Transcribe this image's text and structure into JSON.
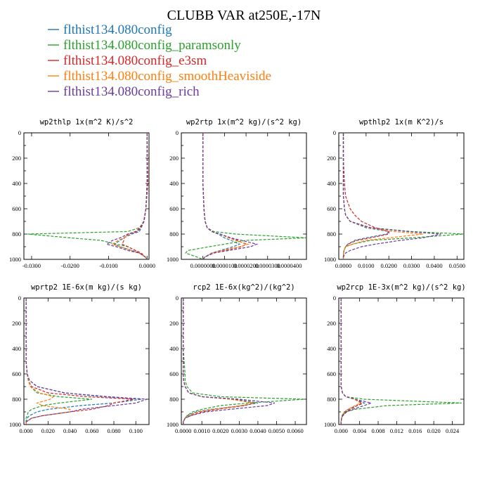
{
  "figure_title": "CLUBB VAR at250E,-17N",
  "legend": [
    {
      "label": "flthist134.080config",
      "color": "#1f77b4"
    },
    {
      "label": "flthist134.080config_paramsonly",
      "color": "#2ca02c"
    },
    {
      "label": "flthist134.080config_e3sm",
      "color": "#d62728"
    },
    {
      "label": "flthist134.080config_smoothHeaviside",
      "color": "#ff7f0e"
    },
    {
      "label": "flthist134.080config_rich",
      "color": "#6a3d9a"
    }
  ],
  "chart_data": [
    {
      "type": "line",
      "title": "wp2thlp   1x(m^2 K)/s^2",
      "xlim": [
        -0.032,
        0.0005
      ],
      "ylim": [
        1000,
        0
      ],
      "xticks": [
        "-0.0300",
        "-0.0200",
        "-0.0100",
        "0.0000"
      ],
      "xtick_values": [
        -0.03,
        -0.02,
        -0.01,
        0.0
      ],
      "yticks": [
        "0",
        "200",
        "400",
        "600",
        "800",
        "1000"
      ],
      "y": [
        0,
        200,
        400,
        600,
        700,
        750,
        780,
        800,
        830,
        850,
        880,
        900,
        930,
        950,
        980,
        1000
      ],
      "series": [
        {
          "values": [
            0,
            0,
            0,
            -0.0003,
            -0.0008,
            -0.0015,
            -0.002,
            -0.004,
            -0.006,
            -0.007,
            -0.0085,
            -0.007,
            -0.004,
            -0.002,
            -0.0005,
            0
          ]
        },
        {
          "values": [
            0,
            0,
            0,
            -0.0003,
            -0.0008,
            -0.002,
            -0.005,
            -0.031,
            -0.02,
            -0.012,
            -0.008,
            -0.005,
            -0.003,
            -0.002,
            -0.0005,
            0
          ]
        },
        {
          "values": [
            0,
            0.0001,
            0.0002,
            -0.0003,
            -0.0009,
            -0.0018,
            -0.003,
            -0.005,
            -0.006,
            -0.006,
            -0.0065,
            -0.005,
            -0.003,
            -0.0015,
            -0.0005,
            0
          ]
        },
        {
          "values": [
            0,
            0,
            0,
            -0.0003,
            -0.0008,
            -0.0016,
            -0.0025,
            -0.0045,
            -0.006,
            -0.0075,
            -0.009,
            -0.007,
            -0.004,
            -0.002,
            -0.0005,
            0
          ]
        },
        {
          "values": [
            0,
            0,
            0,
            -0.0003,
            -0.0008,
            -0.0016,
            -0.0025,
            -0.005,
            -0.007,
            -0.009,
            -0.0105,
            -0.008,
            -0.005,
            -0.002,
            -0.0005,
            0
          ]
        }
      ]
    },
    {
      "type": "line",
      "title": "wp2rtp   1x(m^2 kg)/(s^2 kg)",
      "xlim": [
        -1e-05,
        4.8e-05
      ],
      "ylim": [
        1000,
        0
      ],
      "xticks": [
        "0.0000000",
        "0.0000100",
        "0.0000200",
        "0.0000300",
        "0.0000400"
      ],
      "xtick_values": [
        0.0,
        1e-05,
        2e-05,
        3e-05,
        4e-05
      ],
      "yticks": [
        "0",
        "200",
        "400",
        "600",
        "800",
        "1000"
      ],
      "y": [
        0,
        200,
        400,
        600,
        700,
        750,
        780,
        800,
        830,
        850,
        880,
        900,
        930,
        950,
        980,
        1000
      ],
      "series": [
        {
          "values": [
            0,
            0,
            0,
            5e-07,
            1e-06,
            2e-06,
            4e-06,
            7e-06,
            1e-05,
            1.3e-05,
            1.7e-05,
            1.4e-05,
            8e-06,
            4e-06,
            1e-06,
            0
          ]
        },
        {
          "values": [
            0,
            0,
            0,
            5e-07,
            1e-06,
            2e-06,
            5e-06,
            1.5e-05,
            4.8e-05,
            2e-05,
            1e-05,
            3e-06,
            -7e-06,
            -8e-06,
            -3e-06,
            0
          ]
        },
        {
          "values": [
            0,
            0,
            0,
            5e-07,
            1e-06,
            2e-06,
            4e-06,
            8e-06,
            1.2e-05,
            1.6e-05,
            2e-05,
            1.8e-05,
            1e-05,
            5e-06,
            1e-06,
            0
          ]
        },
        {
          "values": [
            0,
            0,
            0,
            5e-07,
            1e-06,
            2e-06,
            4e-06,
            8e-06,
            1.2e-05,
            1.5e-05,
            2.1e-05,
            1.7e-05,
            9e-06,
            4e-06,
            1e-06,
            0
          ]
        },
        {
          "values": [
            0,
            0,
            0,
            5e-07,
            1e-06,
            2e-06,
            4e-06,
            8e-06,
            1.3e-05,
            1.8e-05,
            2.5e-05,
            2.2e-05,
            1.2e-05,
            5e-06,
            1e-06,
            0
          ]
        }
      ]
    },
    {
      "type": "line",
      "title": "wpthlp2   1x(m K^2)/s",
      "xlim": [
        -0.002,
        0.053
      ],
      "ylim": [
        1000,
        0
      ],
      "xticks": [
        "0.0000",
        "0.0100",
        "0.0200",
        "0.0300",
        "0.0400",
        "0.0500"
      ],
      "xtick_values": [
        0.0,
        0.01,
        0.02,
        0.03,
        0.04,
        0.05
      ],
      "yticks": [
        "0",
        "200",
        "400",
        "600",
        "800",
        "1000"
      ],
      "y": [
        0,
        200,
        400,
        500,
        600,
        650,
        700,
        750,
        780,
        800,
        830,
        850,
        880,
        900,
        930,
        950,
        980,
        1000
      ],
      "series": [
        {
          "values": [
            0,
            0,
            0,
            0,
            0.0005,
            0.001,
            0.003,
            0.01,
            0.02,
            0.019,
            0.01,
            0.005,
            0.002,
            0.001,
            0.0003,
            0.0001,
            0,
            0
          ]
        },
        {
          "values": [
            0,
            0,
            0,
            0,
            0.0005,
            0.001,
            0.003,
            0.012,
            0.03,
            0.053,
            0.03,
            0.012,
            0.004,
            0.001,
            0.0003,
            0.0001,
            0,
            0
          ]
        },
        {
          "values": [
            0,
            0,
            0.0005,
            0.001,
            0.003,
            0.005,
            0.008,
            0.014,
            0.02,
            0.02,
            0.012,
            0.006,
            0.002,
            0.001,
            0.0003,
            0.0001,
            0,
            0
          ]
        },
        {
          "values": [
            0,
            0,
            0,
            0,
            0.0005,
            0.001,
            0.003,
            0.011,
            0.022,
            0.035,
            0.02,
            0.01,
            0.004,
            0.001,
            0.0003,
            0.0001,
            0,
            0
          ]
        },
        {
          "values": [
            0,
            0,
            0,
            0,
            0.0005,
            0.001,
            0.003,
            0.012,
            0.028,
            0.043,
            0.035,
            0.025,
            0.014,
            0.008,
            0.003,
            0.001,
            0,
            0
          ]
        }
      ]
    },
    {
      "type": "line",
      "title": "wprtp2   1E-6x(m kg)/(s kg)",
      "xlim": [
        -0.002,
        0.112
      ],
      "ylim": [
        1000,
        0
      ],
      "xticks": [
        "0.000",
        "0.020",
        "0.040",
        "0.060",
        "0.080",
        "0.100"
      ],
      "xtick_values": [
        0.0,
        0.02,
        0.04,
        0.06,
        0.08,
        0.1
      ],
      "yticks": [
        "0",
        "200",
        "400",
        "600",
        "800",
        "1000"
      ],
      "y": [
        0,
        200,
        400,
        500,
        600,
        650,
        700,
        750,
        780,
        800,
        830,
        850,
        880,
        900,
        930,
        950,
        980,
        1000
      ],
      "series": [
        {
          "values": [
            0,
            0,
            0,
            0,
            0.001,
            0.003,
            0.01,
            0.035,
            0.07,
            0.105,
            0.08,
            0.05,
            0.02,
            0.01,
            0.003,
            0.001,
            0,
            0
          ]
        },
        {
          "values": [
            0,
            0,
            0,
            0,
            0.001,
            0.002,
            0.004,
            0.01,
            0.03,
            0.06,
            0.03,
            0.015,
            0.005,
            0.002,
            0.001,
            0,
            0,
            0
          ]
        },
        {
          "values": [
            0,
            0,
            0,
            0,
            0.001,
            0.002,
            0.005,
            0.02,
            0.055,
            0.098,
            0.08,
            0.075,
            0.06,
            0.04,
            0.015,
            0.005,
            0,
            0
          ]
        },
        {
          "values": [
            0,
            0,
            0,
            0,
            0.001,
            0.002,
            0.004,
            0.012,
            0.025,
            0.022,
            0.01,
            0.015,
            0.04,
            0.04,
            0.015,
            0.005,
            0,
            0
          ]
        },
        {
          "values": [
            0,
            0,
            0,
            0,
            0.001,
            0.003,
            0.01,
            0.035,
            0.075,
            0.11,
            0.1,
            0.08,
            0.05,
            0.04,
            0.015,
            0.005,
            0,
            0
          ]
        }
      ]
    },
    {
      "type": "line",
      "title": "rcp2   1E-6x(kg^2)/(kg^2)",
      "xlim": [
        -0.0001,
        0.0066
      ],
      "ylim": [
        1000,
        0
      ],
      "xticks": [
        "0.0000",
        "0.0010",
        "0.0020",
        "0.0030",
        "0.0040",
        "0.0050",
        "0.0060"
      ],
      "xtick_values": [
        0.0,
        0.001,
        0.002,
        0.003,
        0.004,
        0.005,
        0.006
      ],
      "yticks": [
        "0",
        "200",
        "400",
        "600",
        "800",
        "1000"
      ],
      "y": [
        0,
        200,
        400,
        500,
        600,
        650,
        700,
        750,
        780,
        800,
        830,
        850,
        880,
        900,
        930,
        950,
        980,
        1000
      ],
      "series": [
        {
          "values": [
            0,
            0,
            0,
            0,
            0,
            2e-05,
            0.0001,
            0.0003,
            0.001,
            0.0028,
            0.004,
            0.0032,
            0.0015,
            0.0007,
            0.0002,
            0.0001,
            0,
            0
          ]
        },
        {
          "values": [
            0,
            0,
            0,
            5e-05,
            0.0001,
            0.0001,
            0.0002,
            0.0005,
            0.002,
            0.0065,
            0.0035,
            0.002,
            0.001,
            0.0005,
            0.0002,
            0.0001,
            0,
            0
          ]
        },
        {
          "values": [
            0,
            0,
            0,
            0,
            0,
            2e-05,
            0.0001,
            0.0003,
            0.001,
            0.0026,
            0.0038,
            0.0033,
            0.0018,
            0.001,
            0.0004,
            0.0001,
            0,
            0
          ]
        },
        {
          "values": [
            0,
            0,
            0,
            0,
            0,
            2e-05,
            0.0001,
            0.0003,
            0.001,
            0.0025,
            0.0038,
            0.0031,
            0.0016,
            0.0008,
            0.0003,
            0.0001,
            0,
            0
          ]
        },
        {
          "values": [
            0,
            0,
            0,
            0,
            0,
            2e-05,
            0.0001,
            0.0003,
            0.001,
            0.003,
            0.0049,
            0.0045,
            0.0025,
            0.0012,
            0.0004,
            0.0001,
            0,
            0
          ]
        }
      ]
    },
    {
      "type": "line",
      "title": "wp2rcp   1E-3x(m^2 kg)/(s^2 kg)",
      "xlim": [
        -0.0005,
        0.0265
      ],
      "ylim": [
        1000,
        0
      ],
      "xticks": [
        "0.000",
        "0.004",
        "0.008",
        "0.012",
        "0.016",
        "0.020",
        "0.024"
      ],
      "xtick_values": [
        0.0,
        0.004,
        0.008,
        0.012,
        0.016,
        0.02,
        0.024
      ],
      "yticks": [
        "0",
        "200",
        "400",
        "600",
        "800",
        "1000"
      ],
      "y": [
        0,
        200,
        400,
        600,
        700,
        750,
        780,
        800,
        830,
        850,
        880,
        900,
        930,
        950,
        980,
        1000
      ],
      "series": [
        {
          "values": [
            0,
            0,
            0,
            0,
            0,
            0.0003,
            0.001,
            0.003,
            0.005,
            0.0035,
            0.0015,
            0.0007,
            0.0002,
            0.0001,
            0,
            0
          ]
        },
        {
          "values": [
            0,
            0,
            0,
            0,
            0,
            0.0003,
            0.001,
            0.005,
            0.026,
            0.01,
            0.003,
            0.001,
            0.0003,
            0.0001,
            0,
            0
          ]
        },
        {
          "values": [
            0,
            0,
            0,
            0,
            0,
            0.0003,
            0.001,
            0.003,
            0.0045,
            0.0035,
            0.002,
            0.001,
            0.0003,
            0.0001,
            0,
            0
          ]
        },
        {
          "values": [
            0,
            0,
            0,
            0,
            0,
            0.0003,
            0.001,
            0.0028,
            0.0042,
            0.003,
            0.0015,
            0.0007,
            0.0002,
            0.0001,
            0,
            0
          ]
        },
        {
          "values": [
            0,
            0,
            0,
            0,
            0,
            0.0003,
            0.001,
            0.003,
            0.0065,
            0.005,
            0.0025,
            0.0012,
            0.0004,
            0.0001,
            0,
            0
          ]
        }
      ]
    }
  ]
}
